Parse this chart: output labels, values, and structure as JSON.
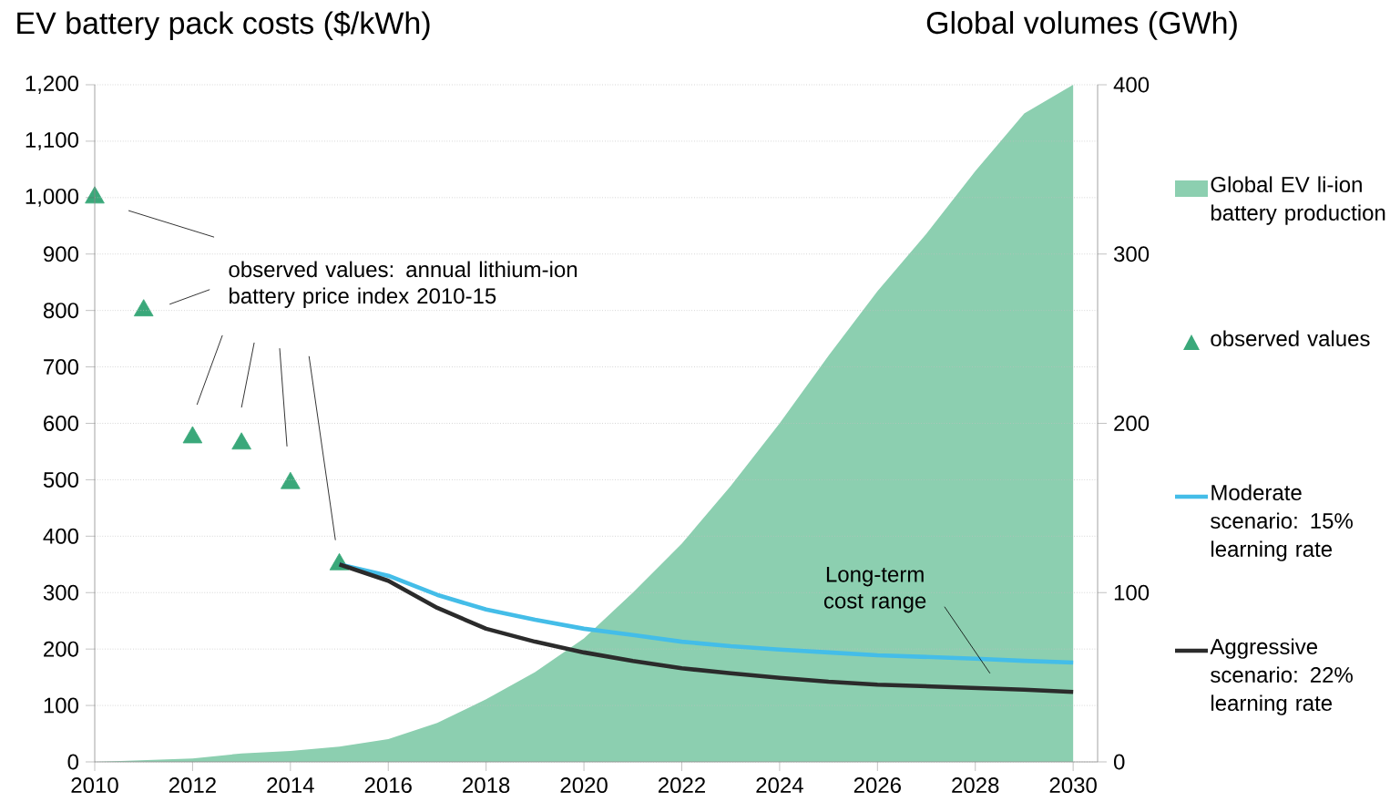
{
  "chart_data": {
    "type": "line",
    "ylabel": "EV battery pack costs ($/kWh)",
    "y2label": "Global volumes (GWh)",
    "xlim": [
      2010,
      2030.5
    ],
    "xticks": [
      2010,
      2012,
      2014,
      2016,
      2018,
      2020,
      2022,
      2024,
      2026,
      2028,
      2030
    ],
    "ylim": [
      0,
      1200
    ],
    "yticks": [
      0,
      100,
      200,
      300,
      400,
      500,
      600,
      700,
      800,
      900,
      {
        "value": 1000,
        "label": "1,000"
      },
      {
        "value": 1100,
        "label": "1,100"
      },
      {
        "value": 1200,
        "label": "1,200"
      }
    ],
    "y2lim": [
      0,
      400
    ],
    "y2ticks": [
      0,
      100,
      200,
      300,
      400
    ],
    "grid": "y",
    "legend": "right",
    "series": [
      {
        "name": "Global EV li-ion battery production",
        "type": "area",
        "axis": "y2",
        "color": "#8ccfb0",
        "x": [
          2010,
          2011,
          2012,
          2013,
          2014,
          2015,
          2016,
          2017,
          2018,
          2019,
          2020,
          2021,
          2022,
          2023,
          2024,
          2025,
          2026,
          2027,
          2028,
          2029,
          2030
        ],
        "values": [
          0,
          1,
          2,
          5,
          6.5,
          9,
          13.5,
          23,
          37,
          53,
          73,
          100,
          129,
          163,
          200,
          240,
          278,
          312,
          349,
          383,
          400
        ]
      },
      {
        "name": "observed values",
        "type": "scatter",
        "marker": "triangle",
        "color": "#3aa87a",
        "x": [
          2010,
          2011,
          2012,
          2013,
          2014,
          2015
        ],
        "values": [
          1000,
          800,
          575,
          564,
          494,
          350
        ]
      },
      {
        "name": "Moderate scenario: 15% learning rate",
        "color": "#44bde8",
        "x": [
          2015,
          2016,
          2017,
          2018,
          2019,
          2020,
          2021,
          2022,
          2023,
          2024,
          2025,
          2026,
          2027,
          2028,
          2029,
          2030
        ],
        "values": [
          350,
          330,
          296,
          270,
          252,
          236,
          225,
          213,
          205,
          199,
          194,
          189,
          186,
          183,
          179,
          176
        ]
      },
      {
        "name": "Aggressive scenario: 22% learning rate",
        "color": "#2b2b2b",
        "x": [
          2015,
          2016,
          2017,
          2018,
          2019,
          2020,
          2021,
          2022,
          2023,
          2024,
          2025,
          2026,
          2027,
          2028,
          2029,
          2030
        ],
        "values": [
          350,
          321,
          273,
          236,
          213,
          194,
          179,
          166,
          157,
          149,
          142,
          137,
          134,
          131,
          128,
          124
        ]
      }
    ],
    "annotations": [
      "observed values: annual lithium-ion battery price index 2010-15",
      "Long-term cost range"
    ]
  }
}
